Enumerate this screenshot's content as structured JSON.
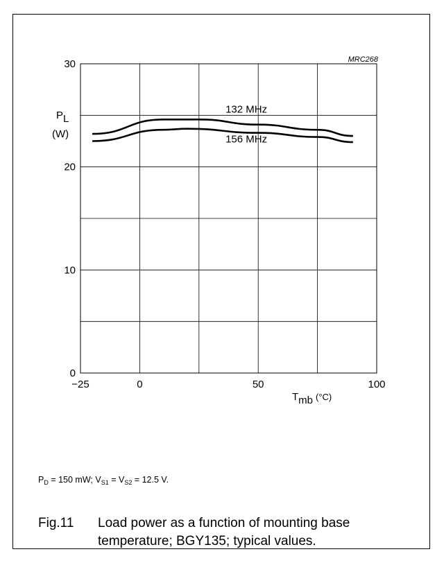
{
  "chart_data": {
    "type": "line",
    "code": "MRC268",
    "ylabel": {
      "symbol": "P",
      "sub": "L",
      "unit": "(W)"
    },
    "xlabel": {
      "symbol": "T",
      "sub": "mb",
      "unit": "(°C)"
    },
    "xlim": [
      -25,
      100
    ],
    "ylim": [
      0,
      30
    ],
    "grid": true,
    "x_ticks": [
      {
        "value": -25,
        "label": "−25"
      },
      {
        "value": 0,
        "label": "0"
      },
      {
        "value": 50,
        "label": "50"
      },
      {
        "value": 100,
        "label": "100"
      }
    ],
    "y_ticks": [
      {
        "value": 0,
        "label": "0"
      },
      {
        "value": 10,
        "label": "10"
      },
      {
        "value": 20,
        "label": "20"
      },
      {
        "value": 30,
        "label": "30"
      }
    ],
    "series": [
      {
        "name": "132 MHz",
        "x": [
          -20,
          10,
          25,
          50,
          75,
          90
        ],
        "y": [
          23.2,
          24.6,
          24.6,
          24.1,
          23.6,
          23.0
        ]
      },
      {
        "name": "156 MHz",
        "x": [
          -20,
          10,
          20,
          50,
          75,
          90
        ],
        "y": [
          22.5,
          23.6,
          23.7,
          23.3,
          22.9,
          22.4
        ]
      }
    ]
  },
  "conditions": {
    "pd_sym": "P",
    "pd_sub": "D",
    "pd_val": " = 150 mW; ",
    "vs1_sym": "V",
    "vs1_sub": "S1",
    "eq": " = ",
    "vs2_sym": "V",
    "vs2_sub": "S2",
    "v_val": " = 12.5 V."
  },
  "caption": {
    "number": "Fig.11",
    "text": "Load power as a function of mounting base temperature; BGY135; typical values."
  }
}
